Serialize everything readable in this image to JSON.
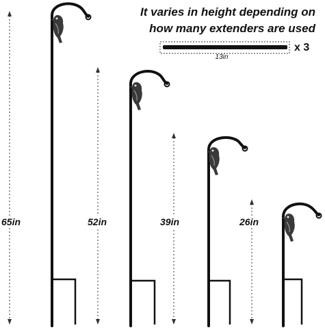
{
  "headline": {
    "line1": "It varies in height depending on",
    "line2": "how many extenders are used"
  },
  "extender": {
    "length_label": "13in",
    "multiplier": "x 3"
  },
  "hooks": [
    {
      "label": "65in"
    },
    {
      "label": "52in"
    },
    {
      "label": "39in"
    },
    {
      "label": "26in"
    }
  ],
  "colors": {
    "rod": "#111111",
    "bird": "#3a3a3a",
    "dimension_line": "#333333"
  }
}
